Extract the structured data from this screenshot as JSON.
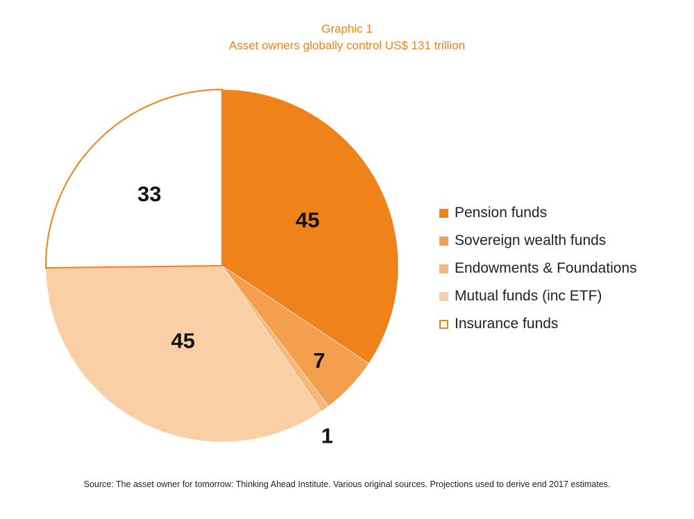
{
  "header": {
    "line1": "Graphic 1",
    "line2": "Asset owners globally control US$ 131 trillion"
  },
  "chart_data": {
    "type": "pie",
    "title": "Asset owners globally control US$ 131 trillion",
    "unit": "US$ trillion",
    "total": 131,
    "legend_position": "right",
    "slices": [
      {
        "name": "Pension funds",
        "value": 45,
        "label": "45",
        "color": "#ef8219",
        "hollow": false
      },
      {
        "name": "Sovereign wealth funds",
        "value": 7,
        "label": "7",
        "color": "#f49f4e",
        "hollow": false
      },
      {
        "name": "Endowments & Foundations",
        "value": 1,
        "label": "1",
        "color": "#f7b77a",
        "hollow": false
      },
      {
        "name": "Mutual funds (inc ETF)",
        "value": 45,
        "label": "45",
        "color": "#fbcfa5",
        "hollow": false
      },
      {
        "name": "Insurance funds",
        "value": 33,
        "label": "33",
        "color": "#ef8219",
        "hollow": true
      }
    ]
  },
  "source": "Source: The asset owner for tomorrow: Thinking Ahead Institute. Various original sources. Projections used to derive end 2017 estimates."
}
